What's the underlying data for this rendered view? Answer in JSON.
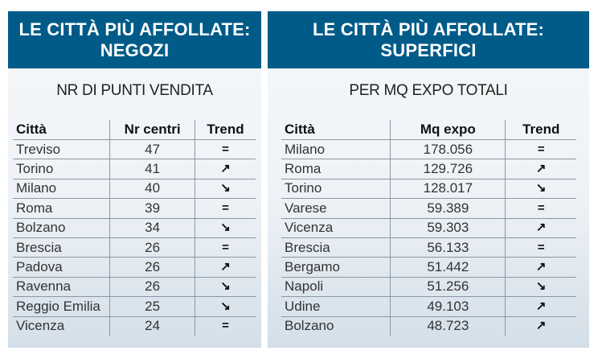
{
  "panels": [
    {
      "title_line1": "LE CITTÀ PIÙ AFFOLLATE:",
      "title_line2": "NEGOZI",
      "subtitle": "NR DI PUNTI VENDITA",
      "columns": [
        "Città",
        "Nr centri",
        "Trend"
      ],
      "rows": [
        [
          "Treviso",
          "47",
          "="
        ],
        [
          "Torino",
          "41",
          "↗"
        ],
        [
          "Milano",
          "40",
          "↘"
        ],
        [
          "Roma",
          "39",
          "="
        ],
        [
          "Bolzano",
          "34",
          "↘"
        ],
        [
          "Brescia",
          "26",
          "="
        ],
        [
          "Padova",
          "26",
          "↗"
        ],
        [
          "Ravenna",
          "26",
          "↘"
        ],
        [
          "Reggio Emilia",
          "25",
          "↘"
        ],
        [
          "Vicenza",
          "24",
          "="
        ]
      ]
    },
    {
      "title_line1": "LE CITTÀ PIÙ AFFOLLATE:",
      "title_line2": "SUPERFICI",
      "subtitle": "PER MQ EXPO TOTALI",
      "columns": [
        "Città",
        "Mq expo",
        "Trend"
      ],
      "rows": [
        [
          "Milano",
          "178.056",
          "="
        ],
        [
          "Roma",
          "129.726",
          "↗"
        ],
        [
          "Torino",
          "128.017",
          "↘"
        ],
        [
          "Varese",
          "59.389",
          "="
        ],
        [
          "Vicenza",
          "59.303",
          "↗"
        ],
        [
          "Brescia",
          "56.133",
          "="
        ],
        [
          "Bergamo",
          "51.442",
          "↗"
        ],
        [
          "Napoli",
          "51.256",
          "↘"
        ],
        [
          "Udine",
          "49.103",
          "↗"
        ],
        [
          "Bolzano",
          "48.723",
          "↗"
        ]
      ]
    }
  ]
}
